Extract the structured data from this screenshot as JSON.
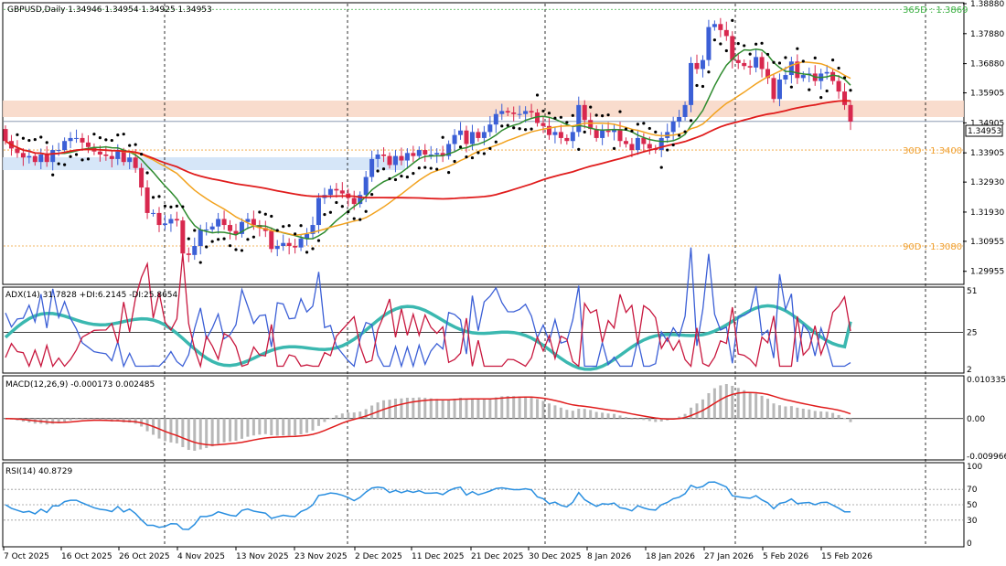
{
  "window_title": "GBPUSD,Daily  1.34946 1.34954 1.34925 1.34953",
  "chart_data": {
    "type": "candlestick",
    "symbol": "GBPUSD",
    "timeframe": "Daily",
    "ohlc_label": "1.34946 1.34954 1.34925 1.34953",
    "last_price_label": "1.34953",
    "price_ylim": [
      1.2955,
      1.3888
    ],
    "price_ticks": [
      "1.38880",
      "1.37880",
      "1.36880",
      "1.35905",
      "1.34905",
      "1.33905",
      "1.32930",
      "1.31930",
      "1.30955",
      "1.29955"
    ],
    "x_tick_labels": [
      "7 Oct 2025",
      "16 Oct 2025",
      "26 Oct 2025",
      "4 Nov 2025",
      "13 Nov 2025",
      "23 Nov 2025",
      "2 Dec 2025",
      "11 Dec 2025",
      "21 Dec 2025",
      "30 Dec 2025",
      "8 Jan 2026",
      "18 Jan 2026",
      "27 Jan 2026",
      "5 Feb 2026",
      "15 Feb 2026"
    ],
    "levels": [
      {
        "label": "365D : 1.3869",
        "value": 1.3869,
        "color": "#3cb043"
      },
      {
        "label": "30D : 1.3400",
        "value": 1.34,
        "color": "#f0a030"
      },
      {
        "label": "90D : 1.3080",
        "value": 1.308,
        "color": "#f0a030"
      }
    ],
    "close": [
      1.343,
      1.3405,
      1.339,
      1.3375,
      1.338,
      1.336,
      1.3385,
      1.336,
      1.34,
      1.34,
      1.343,
      1.344,
      1.344,
      1.3425,
      1.341,
      1.3395,
      1.3385,
      1.338,
      1.337,
      1.3395,
      1.336,
      1.3375,
      1.334,
      1.3275,
      1.319,
      1.319,
      1.315,
      1.3155,
      1.317,
      1.3165,
      1.3055,
      1.305,
      1.308,
      1.3135,
      1.3135,
      1.3145,
      1.317,
      1.315,
      1.313,
      1.312,
      1.316,
      1.317,
      1.315,
      1.314,
      1.313,
      1.307,
      1.308,
      1.309,
      1.308,
      1.3075,
      1.3105,
      1.312,
      1.315,
      1.324,
      1.325,
      1.327,
      1.3265,
      1.3255,
      1.324,
      1.322,
      1.325,
      1.331,
      1.337,
      1.3385,
      1.338,
      1.335,
      1.338,
      1.3365,
      1.339,
      1.338,
      1.34,
      1.3385,
      1.3385,
      1.339,
      1.338,
      1.342,
      1.345,
      1.3465,
      1.342,
      1.346,
      1.344,
      1.346,
      1.3485,
      1.352,
      1.353,
      1.3525,
      1.352,
      1.352,
      1.353,
      1.3525,
      1.349,
      1.348,
      1.345,
      1.346,
      1.344,
      1.343,
      1.346,
      1.355,
      1.35,
      1.347,
      1.344,
      1.3465,
      1.346,
      1.347,
      1.343,
      1.342,
      1.34,
      1.344,
      1.342,
      1.3405,
      1.34,
      1.344,
      1.346,
      1.3495,
      1.351,
      1.355,
      1.369,
      1.367,
      1.37,
      1.381,
      1.382,
      1.38,
      1.378,
      1.37,
      1.369,
      1.368,
      1.3675,
      1.371,
      1.367,
      1.364,
      1.357,
      1.3635,
      1.365,
      1.3695,
      1.364,
      1.365,
      1.3655,
      1.363,
      1.3655,
      1.366,
      1.363,
      1.3595,
      1.355,
      1.3495
    ],
    "sma_green_label": "Green MA",
    "sma_orange_label": "Orange MA",
    "sma_red_label": "Red MA",
    "adx": {
      "label": "ADX(14) 31.7828 +DI:6.2145 -DI:25.8654",
      "adx": 31.7828,
      "plus_di": 6.2145,
      "minus_di": 25.8654,
      "ylim": [
        2,
        51
      ],
      "ticks": [
        "51",
        "25",
        "2"
      ],
      "level": 25
    },
    "macd": {
      "label": "MACD(12,26,9) -0.000173 0.002485",
      "main": -0.000173,
      "signal": 0.002485,
      "ylim": [
        -0.009966,
        0.010335
      ],
      "ticks": [
        "0.010335",
        "0.00",
        "-0.009966"
      ]
    },
    "rsi": {
      "label": "RSI(14) 40.8729",
      "value": 40.8729,
      "ylim": [
        0,
        100
      ],
      "ticks": [
        "100",
        "70",
        "50",
        "30",
        "0"
      ]
    }
  }
}
